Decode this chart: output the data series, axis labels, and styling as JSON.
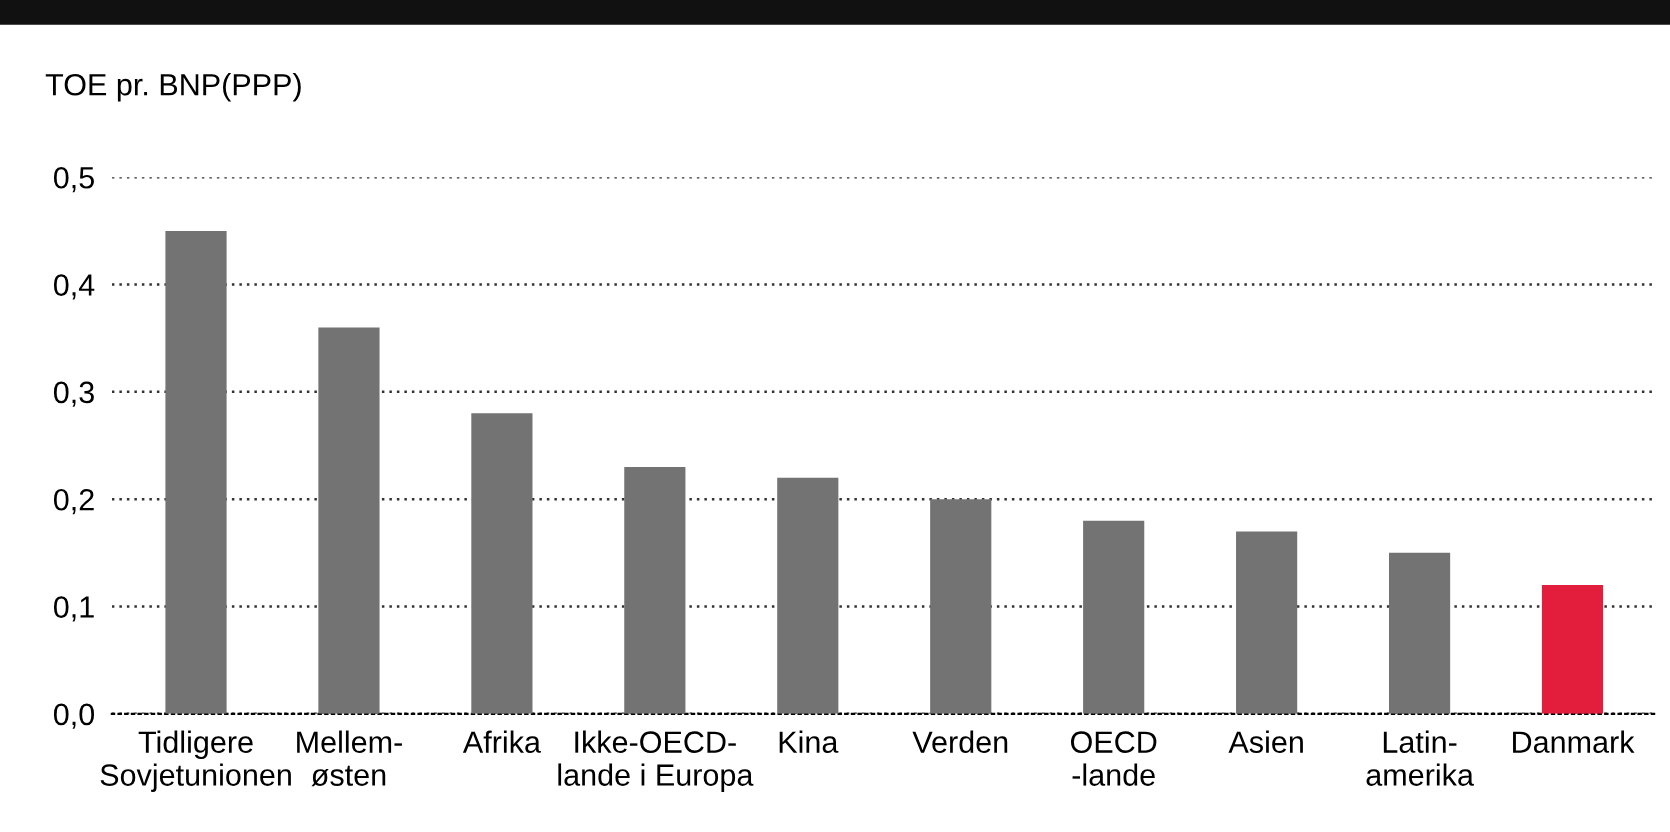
{
  "chart_data": {
    "type": "bar",
    "ylabel": "TOE pr. BNP(PPP)",
    "categories": [
      "Tidligere\nSovjetunionen",
      "Mellem-\nøsten",
      "Afrika",
      "Ikke-OECD-\nlande i Europa",
      "Kina",
      "Verden",
      "OECD\n-lande",
      "Asien",
      "Latin-\namerika",
      "Danmark"
    ],
    "values": [
      0.45,
      0.36,
      0.28,
      0.23,
      0.22,
      0.2,
      0.18,
      0.17,
      0.15,
      0.12
    ],
    "colors": [
      "#737373",
      "#737373",
      "#737373",
      "#737373",
      "#737373",
      "#737373",
      "#737373",
      "#737373",
      "#737373",
      "#e31d3c"
    ],
    "ylim": [
      0,
      0.5
    ],
    "yticks": [
      {
        "value": 0,
        "label": "0,0"
      },
      {
        "value": 0.1,
        "label": "0,1"
      },
      {
        "value": 0.2,
        "label": "0,2"
      },
      {
        "value": 0.3,
        "label": "0,3"
      },
      {
        "value": 0.4,
        "label": "0,4"
      },
      {
        "value": 0.5,
        "label": "0,5"
      }
    ],
    "grid": "y"
  }
}
